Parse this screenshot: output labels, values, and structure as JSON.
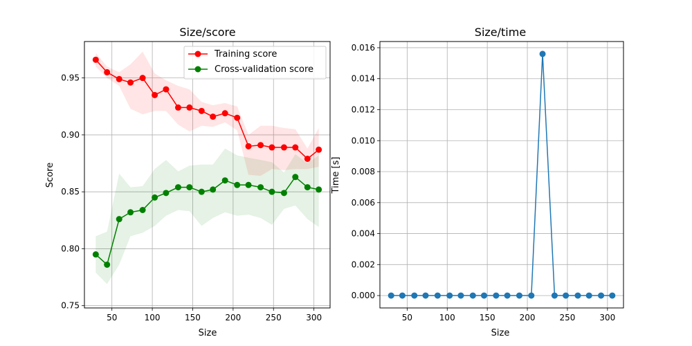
{
  "chart_data": [
    {
      "type": "line",
      "title": "Size/score",
      "xlabel": "Size",
      "ylabel": "Score",
      "xlim": [
        16,
        320
      ],
      "ylim": [
        0.748,
        0.982
      ],
      "xticks": [
        50,
        100,
        150,
        200,
        250,
        300
      ],
      "yticks": [
        0.75,
        0.8,
        0.85,
        0.9,
        0.95
      ],
      "ytick_labels": [
        "0.75",
        "0.80",
        "0.85",
        "0.90",
        "0.95"
      ],
      "grid": true,
      "legend": "top-right",
      "x": [
        30,
        44,
        59,
        73,
        88,
        103,
        117,
        132,
        146,
        161,
        175,
        190,
        205,
        219,
        234,
        248,
        263,
        277,
        292,
        306
      ],
      "series": [
        {
          "name": "Training score",
          "color": "#ff0000",
          "values": [
            0.966,
            0.955,
            0.949,
            0.946,
            0.95,
            0.935,
            0.94,
            0.924,
            0.924,
            0.921,
            0.916,
            0.919,
            0.915,
            0.89,
            0.891,
            0.889,
            0.889,
            0.889,
            0.879,
            0.887
          ],
          "band_low": [
            0.96,
            0.95,
            0.943,
            0.923,
            0.918,
            0.921,
            0.921,
            0.909,
            0.903,
            0.908,
            0.907,
            0.911,
            0.904,
            0.865,
            0.864,
            0.87,
            0.869,
            0.87,
            0.87,
            0.872
          ],
          "band_high": [
            0.972,
            0.96,
            0.955,
            0.962,
            0.973,
            0.954,
            0.948,
            0.943,
            0.94,
            0.929,
            0.926,
            0.928,
            0.925,
            0.9,
            0.908,
            0.908,
            0.906,
            0.905,
            0.888,
            0.906
          ]
        },
        {
          "name": "Cross-validation score",
          "color": "#008000",
          "values": [
            0.795,
            0.786,
            0.826,
            0.832,
            0.834,
            0.845,
            0.849,
            0.854,
            0.854,
            0.85,
            0.852,
            0.86,
            0.856,
            0.856,
            0.854,
            0.85,
            0.849,
            0.863,
            0.854,
            0.852
          ],
          "band_low": [
            0.779,
            0.769,
            0.786,
            0.811,
            0.814,
            0.82,
            0.829,
            0.834,
            0.833,
            0.82,
            0.827,
            0.832,
            0.829,
            0.83,
            0.827,
            0.821,
            0.835,
            0.838,
            0.826,
            0.819
          ],
          "band_high": [
            0.811,
            0.815,
            0.866,
            0.854,
            0.855,
            0.87,
            0.878,
            0.868,
            0.873,
            0.874,
            0.874,
            0.888,
            0.882,
            0.88,
            0.878,
            0.876,
            0.867,
            0.883,
            0.875,
            0.882
          ]
        }
      ]
    },
    {
      "type": "line",
      "title": "Size/time",
      "xlabel": "Size",
      "ylabel": "Time [s]",
      "xlim": [
        16,
        320
      ],
      "ylim": [
        -0.0008,
        0.0164
      ],
      "xticks": [
        50,
        100,
        150,
        200,
        250,
        300
      ],
      "yticks": [
        0.0,
        0.002,
        0.004,
        0.006,
        0.008,
        0.01,
        0.012,
        0.014,
        0.016
      ],
      "ytick_labels": [
        "0.000",
        "0.002",
        "0.004",
        "0.006",
        "0.008",
        "0.010",
        "0.012",
        "0.014",
        "0.016"
      ],
      "grid": true,
      "x": [
        30,
        44,
        59,
        73,
        88,
        103,
        117,
        132,
        146,
        161,
        175,
        190,
        205,
        219,
        234,
        248,
        263,
        277,
        292,
        306
      ],
      "series": [
        {
          "color": "#1f77b4",
          "values": [
            0,
            0,
            0,
            0,
            0,
            0,
            0,
            0,
            0,
            0,
            0,
            0,
            0,
            0.0156,
            0,
            0,
            0,
            0,
            0,
            0
          ]
        }
      ]
    }
  ]
}
